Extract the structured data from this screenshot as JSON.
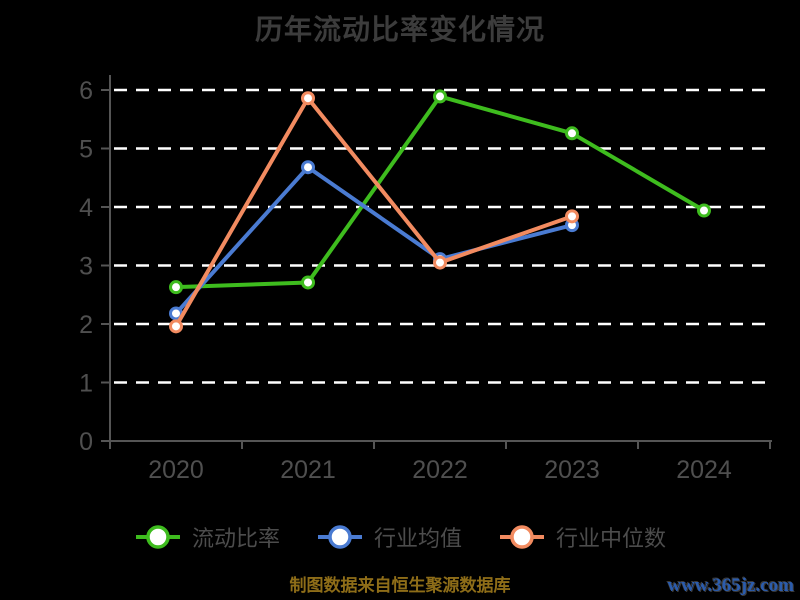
{
  "page": {
    "background": "#000000"
  },
  "header": {
    "title": "历年流动比率变化情况"
  },
  "footer": {
    "source_note": "制图数据来自恒生聚源数据库",
    "source_note_color": "#8e6d18",
    "watermark": "www.365jz.com",
    "watermark_color": "#2b5cad"
  },
  "chart_data": {
    "type": "line",
    "title": "历年流动比率变化情况",
    "categories": [
      "2020",
      "2021",
      "2022",
      "2023",
      "2024"
    ],
    "series": [
      {
        "id": "current-ratio",
        "name": "流动比率",
        "color": "#3ebc1e",
        "values": [
          2.63,
          2.71,
          5.89,
          5.26,
          3.94
        ]
      },
      {
        "id": "industry-mean",
        "name": "行业均值",
        "color": "#4a7bd2",
        "values": [
          2.18,
          4.68,
          3.11,
          3.69,
          null
        ]
      },
      {
        "id": "industry-median",
        "name": "行业中位数",
        "color": "#f28b60",
        "values": [
          1.96,
          5.86,
          3.05,
          3.84,
          null
        ]
      }
    ],
    "xlabel": "",
    "ylabel": "",
    "ylim": [
      0,
      6
    ],
    "y_ticks": [
      0,
      1,
      2,
      3,
      4,
      5,
      6
    ],
    "grid": "horizontal-dashed-white",
    "gridline_color": "#ffffff",
    "axis_color": "#555555",
    "tick_label_color": "#4f4f4f",
    "marker": "circle-white-fill",
    "legend_position": "bottom"
  }
}
